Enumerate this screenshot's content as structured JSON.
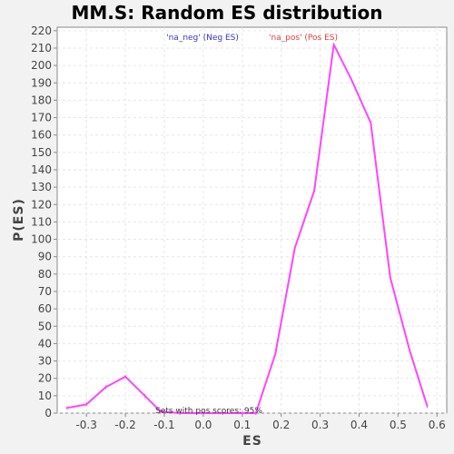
{
  "chart_data": {
    "type": "line",
    "title": "MM.S: Random ES distribution",
    "xlabel": "ES",
    "ylabel": "P(ES)",
    "xlim": [
      -0.375,
      0.625
    ],
    "ylim": [
      0,
      222
    ],
    "x_ticks": [
      -0.3,
      -0.2,
      -0.1,
      0.0,
      0.1,
      0.2,
      0.3,
      0.4,
      0.5,
      0.6
    ],
    "x_tick_labels": [
      "-0.3",
      "-0.2",
      "-0.1",
      "0.0",
      "0.1",
      "0.2",
      "0.3",
      "0.4",
      "0.5",
      "0.6"
    ],
    "y_ticks": [
      0,
      10,
      20,
      30,
      40,
      50,
      60,
      70,
      80,
      90,
      100,
      110,
      120,
      130,
      140,
      150,
      160,
      170,
      180,
      190,
      200,
      210,
      220
    ],
    "grid": true,
    "legend": {
      "placement": "top-center",
      "entries": [
        {
          "text": "'na_neg' (Neg ES)",
          "color": "#3333cc"
        },
        {
          "text": "'na_pos' (Pos ES)",
          "color": "#e83a3a"
        }
      ]
    },
    "series": [
      {
        "color": "#ff44ff",
        "points": [
          [
            -0.35,
            3
          ],
          [
            -0.3,
            5
          ],
          [
            -0.25,
            15
          ],
          [
            -0.2,
            21
          ],
          [
            -0.15,
            10
          ],
          [
            -0.11,
            1
          ],
          [
            -0.06,
            0
          ],
          [
            0.0,
            0
          ],
          [
            0.05,
            0
          ],
          [
            0.1,
            0
          ],
          [
            0.135,
            0
          ],
          [
            0.185,
            34
          ],
          [
            0.235,
            95
          ],
          [
            0.285,
            128
          ],
          [
            0.335,
            212
          ],
          [
            0.38,
            192
          ],
          [
            0.43,
            167
          ],
          [
            0.48,
            78
          ],
          [
            0.53,
            36
          ],
          [
            0.575,
            4
          ]
        ]
      }
    ],
    "annotation": "Sets with pos scores: 95%"
  },
  "colors": {
    "background": "#f2f2f2",
    "plot_background": "#ffffff",
    "grid": "#e6e6e6",
    "axis": "#888888"
  }
}
